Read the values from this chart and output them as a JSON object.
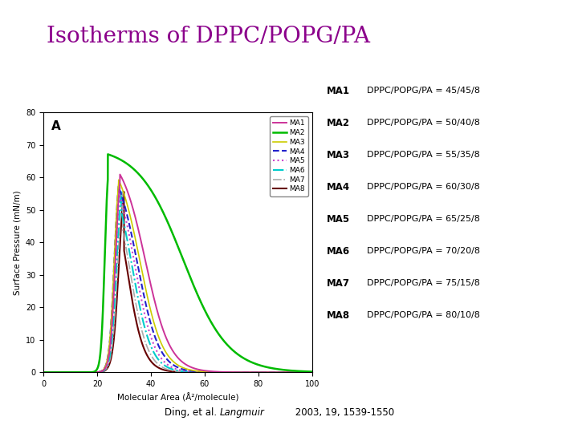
{
  "title": "Isotherms of DPPC/POPG/PA",
  "title_color": "#8B008B",
  "title_fontsize": 20,
  "xlabel": "Molecular Area (Å²/molecule)",
  "ylabel": "Surface Pressure (mN/m)",
  "xlim": [
    0,
    100
  ],
  "ylim": [
    0,
    80
  ],
  "xticks": [
    0,
    20,
    40,
    60,
    80,
    100
  ],
  "yticks": [
    0,
    10,
    20,
    30,
    40,
    50,
    60,
    70,
    80
  ],
  "panel_label": "A",
  "series": [
    {
      "name": "MA1",
      "color": "#cc3399",
      "linestyle": "-",
      "linewidth": 1.4,
      "ratio": "45/45/8"
    },
    {
      "name": "MA2",
      "color": "#00bb00",
      "linestyle": "-",
      "linewidth": 1.8,
      "ratio": "50/40/8"
    },
    {
      "name": "MA3",
      "color": "#cccc00",
      "linestyle": "-",
      "linewidth": 1.2,
      "ratio": "55/35/8"
    },
    {
      "name": "MA4",
      "color": "#2222cc",
      "linestyle": "--",
      "linewidth": 1.5,
      "ratio": "60/30/8"
    },
    {
      "name": "MA5",
      "color": "#cc44cc",
      "linestyle": ":",
      "linewidth": 1.5,
      "ratio": "65/25/8"
    },
    {
      "name": "MA6",
      "color": "#00cccc",
      "linestyle": "-.",
      "linewidth": 1.5,
      "ratio": "70/20/8"
    },
    {
      "name": "MA7",
      "color": "#aaaaaa",
      "linestyle": "-.",
      "linewidth": 1.2,
      "ratio": "75/15/8"
    },
    {
      "name": "MA8",
      "color": "#660000",
      "linestyle": "-",
      "linewidth": 1.5,
      "ratio": "80/10/8"
    }
  ],
  "background_color": "#ffffff",
  "ma_labels": [
    [
      "MA1",
      "DPPC/POPG/PA = 45/45/8"
    ],
    [
      "MA2",
      "DPPC/POPG/PA = 50/40/8"
    ],
    [
      "MA3",
      "DPPC/POPG/PA = 55/35/8"
    ],
    [
      "MA4",
      "DPPC/POPG/PA = 60/30/8"
    ],
    [
      "MA5",
      "DPPC/POPG/PA = 65/25/8"
    ],
    [
      "MA6",
      "DPPC/POPG/PA = 70/20/8"
    ],
    [
      "MA7",
      "DPPC/POPG/PA = 75/15/8"
    ],
    [
      "MA8",
      "DPPC/POPG/PA = 80/10/8"
    ]
  ]
}
